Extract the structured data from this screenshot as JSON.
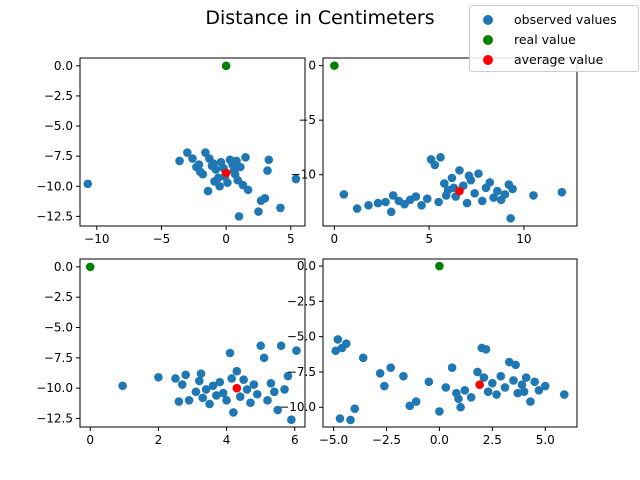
{
  "chart_data": {
    "type": "scatter",
    "title": "Distance in Centimeters",
    "legend": {
      "placement": "top-right",
      "entries": [
        {
          "key": "observed",
          "label": "observed values",
          "color": "#1f77b4"
        },
        {
          "key": "real",
          "label": "real value",
          "color": "#008000"
        },
        {
          "key": "average",
          "label": "average value",
          "color": "#ff0000"
        }
      ]
    },
    "subplots": [
      {
        "xlim": [
          -11.3,
          6.1
        ],
        "ylim": [
          -13.3,
          0.65
        ],
        "xticks": [
          -10,
          -5,
          0,
          5
        ],
        "xtick_labels": [
          "−10",
          "−5",
          "0",
          "5"
        ],
        "yticks": [
          0,
          -2.5,
          -5,
          -7.5,
          -10,
          -12.5
        ],
        "ytick_labels": [
          "0.0",
          "−2.5",
          "−5.0",
          "−7.5",
          "−10.0",
          "−12.5"
        ],
        "real": [
          0,
          0
        ],
        "average": [
          0,
          -8.9
        ],
        "observed": [
          [
            -10.7,
            -9.8
          ],
          [
            -3.6,
            -7.9
          ],
          [
            -3.0,
            -7.2
          ],
          [
            -2.6,
            -7.7
          ],
          [
            -2.3,
            -8.4
          ],
          [
            -2.0,
            -8.8
          ],
          [
            -1.6,
            -7.2
          ],
          [
            -1.3,
            -7.7
          ],
          [
            -1.0,
            -8.1
          ],
          [
            -0.8,
            -8.6
          ],
          [
            -0.6,
            -9.3
          ],
          [
            -0.4,
            -8.0
          ],
          [
            -0.2,
            -8.5
          ],
          [
            0.1,
            -9.7
          ],
          [
            0.3,
            -7.8
          ],
          [
            0.5,
            -8.2
          ],
          [
            0.7,
            -9.0
          ],
          [
            0.9,
            -9.5
          ],
          [
            1.1,
            -8.4
          ],
          [
            1.3,
            -9.9
          ],
          [
            1.5,
            -7.6
          ],
          [
            1.7,
            -10.3
          ],
          [
            -1.4,
            -10.4
          ],
          [
            -0.5,
            -10.0
          ],
          [
            1.0,
            -12.5
          ],
          [
            2.5,
            -12.1
          ],
          [
            2.7,
            -11.2
          ],
          [
            3.0,
            -11.0
          ],
          [
            3.2,
            -8.7
          ],
          [
            3.3,
            -7.8
          ],
          [
            4.2,
            -11.8
          ],
          [
            5.4,
            -9.4
          ],
          [
            -1.8,
            -9.0
          ],
          [
            -0.9,
            -9.6
          ],
          [
            0.6,
            -8.7
          ],
          [
            -0.1,
            -9.2
          ],
          [
            0.8,
            -7.9
          ],
          [
            -1.1,
            -8.3
          ],
          [
            -2.1,
            -8.2
          ]
        ]
      },
      {
        "xlim": [
          -0.6,
          12.8
        ],
        "ylim": [
          -14.7,
          0.7
        ],
        "xticks": [
          0,
          5,
          10
        ],
        "xtick_labels": [
          "0",
          "5",
          "10"
        ],
        "yticks": [
          0,
          -5,
          -10
        ],
        "ytick_labels": [
          "0",
          "−5",
          "−10"
        ],
        "real": [
          0,
          0
        ],
        "average": [
          6.6,
          -11.5
        ],
        "observed": [
          [
            0.5,
            -11.8
          ],
          [
            1.2,
            -13.1
          ],
          [
            1.8,
            -12.8
          ],
          [
            2.3,
            -12.6
          ],
          [
            2.7,
            -12.5
          ],
          [
            3.1,
            -11.9
          ],
          [
            3.4,
            -12.4
          ],
          [
            3.7,
            -12.7
          ],
          [
            4.0,
            -12.3
          ],
          [
            4.3,
            -12.0
          ],
          [
            4.6,
            -12.8
          ],
          [
            4.9,
            -12.2
          ],
          [
            5.1,
            -8.6
          ],
          [
            5.3,
            -9.1
          ],
          [
            5.5,
            -12.5
          ],
          [
            5.6,
            -8.4
          ],
          [
            5.8,
            -10.8
          ],
          [
            6.0,
            -11.4
          ],
          [
            6.2,
            -10.3
          ],
          [
            6.4,
            -12.0
          ],
          [
            6.6,
            -9.6
          ],
          [
            6.8,
            -11.0
          ],
          [
            7.0,
            -12.6
          ],
          [
            7.2,
            -10.5
          ],
          [
            7.4,
            -11.7
          ],
          [
            7.6,
            -9.9
          ],
          [
            7.8,
            -12.4
          ],
          [
            8.0,
            -11.2
          ],
          [
            8.2,
            -10.7
          ],
          [
            8.4,
            -12.1
          ],
          [
            8.6,
            -11.5
          ],
          [
            8.8,
            -12.3
          ],
          [
            9.0,
            -11.8
          ],
          [
            9.2,
            -10.9
          ],
          [
            9.4,
            -11.3
          ],
          [
            9.3,
            -14.0
          ],
          [
            10.5,
            -11.9
          ],
          [
            12.0,
            -11.6
          ],
          [
            3.0,
            -13.4
          ],
          [
            6.3,
            -11.2
          ],
          [
            7.1,
            -10.1
          ],
          [
            5.9,
            -11.9
          ]
        ]
      },
      {
        "xlim": [
          -0.3,
          6.3
        ],
        "ylim": [
          -13.2,
          0.65
        ],
        "xticks": [
          0,
          2,
          4,
          6
        ],
        "xtick_labels": [
          "0",
          "2",
          "4",
          "6"
        ],
        "yticks": [
          0,
          -2.5,
          -5,
          -7.5,
          -10,
          -12.5
        ],
        "ytick_labels": [
          "0.0",
          "−2.5",
          "−5.0",
          "−7.5",
          "−10.0",
          "−12.5"
        ],
        "real": [
          0,
          0
        ],
        "average": [
          4.3,
          -10.0
        ],
        "observed": [
          [
            0.95,
            -9.8
          ],
          [
            2.0,
            -9.1
          ],
          [
            2.5,
            -9.2
          ],
          [
            2.6,
            -11.1
          ],
          [
            2.7,
            -9.7
          ],
          [
            2.8,
            -8.9
          ],
          [
            2.9,
            -11.0
          ],
          [
            3.1,
            -10.3
          ],
          [
            3.2,
            -9.4
          ],
          [
            3.3,
            -10.8
          ],
          [
            3.4,
            -10.1
          ],
          [
            3.5,
            -11.3
          ],
          [
            3.6,
            -9.8
          ],
          [
            3.7,
            -10.6
          ],
          [
            3.8,
            -9.5
          ],
          [
            3.9,
            -10.4
          ],
          [
            4.0,
            -11.0
          ],
          [
            4.1,
            -7.1
          ],
          [
            4.2,
            -12.0
          ],
          [
            4.3,
            -8.6
          ],
          [
            4.4,
            -10.7
          ],
          [
            4.5,
            -9.3
          ],
          [
            4.6,
            -10.1
          ],
          [
            4.7,
            -11.2
          ],
          [
            4.8,
            -9.7
          ],
          [
            4.9,
            -10.5
          ],
          [
            5.0,
            -6.5
          ],
          [
            5.1,
            -7.5
          ],
          [
            5.2,
            -11.0
          ],
          [
            5.3,
            -9.6
          ],
          [
            5.4,
            -10.3
          ],
          [
            5.5,
            -11.8
          ],
          [
            5.6,
            -6.5
          ],
          [
            5.7,
            -10.1
          ],
          [
            5.8,
            -9.0
          ],
          [
            5.9,
            -12.6
          ],
          [
            6.05,
            -6.9
          ],
          [
            3.25,
            -8.8
          ],
          [
            4.15,
            -9.2
          ]
        ]
      },
      {
        "xlim": [
          -5.5,
          6.5
        ],
        "ylim": [
          -11.4,
          0.5
        ],
        "xticks": [
          -5,
          -2.5,
          0,
          2.5,
          5
        ],
        "xtick_labels": [
          "−5.0",
          "−2.5",
          "0.0",
          "2.5",
          "5.0"
        ],
        "yticks": [
          0,
          -2.5,
          -5,
          -7.5,
          -10
        ],
        "ytick_labels": [
          "0.0",
          "−2.5",
          "−5.0",
          "−7.5",
          "−10.0"
        ],
        "real": [
          0,
          0
        ],
        "average": [
          1.9,
          -8.4
        ],
        "observed": [
          [
            -4.9,
            -6.0
          ],
          [
            -4.8,
            -5.2
          ],
          [
            -4.6,
            -5.8
          ],
          [
            -4.4,
            -5.5
          ],
          [
            -4.7,
            -10.8
          ],
          [
            -4.2,
            -10.9
          ],
          [
            -4.0,
            -10.1
          ],
          [
            -3.6,
            -6.5
          ],
          [
            -2.8,
            -7.6
          ],
          [
            -2.6,
            -8.5
          ],
          [
            -2.3,
            -7.2
          ],
          [
            -1.7,
            -7.8
          ],
          [
            -1.4,
            -9.9
          ],
          [
            -1.1,
            -9.6
          ],
          [
            -0.5,
            -8.2
          ],
          [
            0.0,
            -10.3
          ],
          [
            0.3,
            -8.6
          ],
          [
            0.6,
            -7.2
          ],
          [
            0.8,
            -9.0
          ],
          [
            1.0,
            -10.0
          ],
          [
            1.2,
            -8.8
          ],
          [
            1.5,
            -9.3
          ],
          [
            1.8,
            -7.5
          ],
          [
            2.0,
            -5.8
          ],
          [
            2.1,
            -7.9
          ],
          [
            2.3,
            -8.9
          ],
          [
            2.5,
            -8.3
          ],
          [
            2.7,
            -9.1
          ],
          [
            2.9,
            -7.8
          ],
          [
            3.1,
            -8.6
          ],
          [
            3.3,
            -6.8
          ],
          [
            3.5,
            -8.1
          ],
          [
            3.7,
            -9.0
          ],
          [
            3.9,
            -8.4
          ],
          [
            4.1,
            -7.9
          ],
          [
            4.3,
            -9.6
          ],
          [
            4.5,
            -8.2
          ],
          [
            4.7,
            -8.8
          ],
          [
            5.0,
            -8.5
          ],
          [
            5.9,
            -9.1
          ],
          [
            3.6,
            -7.0
          ],
          [
            4.0,
            -8.9
          ],
          [
            2.2,
            -5.9
          ],
          [
            0.9,
            -9.4
          ]
        ]
      }
    ]
  }
}
